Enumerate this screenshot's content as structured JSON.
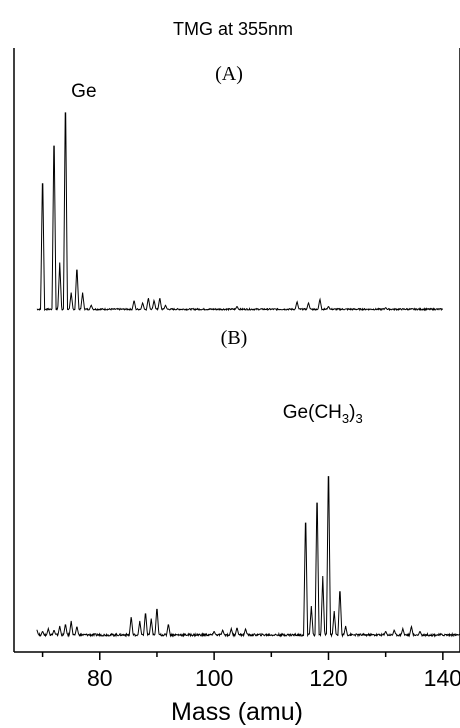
{
  "chart_data": {
    "type": "line",
    "title": "TMG at 355nm",
    "xlabel": "Mass (amu)",
    "ylabel": "",
    "xlim": [
      65,
      143
    ],
    "xticks": [
      80,
      100,
      120,
      140
    ],
    "ylim": [
      0,
      1
    ],
    "grid": false,
    "legend": "none",
    "panels": [
      {
        "label": "(A)",
        "annotation": "Ge",
        "annotation_x": 75,
        "x_end": 140,
        "baseline": 0.01,
        "peaks": [
          {
            "x": 70.0,
            "y": 0.57
          },
          {
            "x": 72.0,
            "y": 0.74
          },
          {
            "x": 73.0,
            "y": 0.19
          },
          {
            "x": 74.0,
            "y": 0.89
          },
          {
            "x": 75.0,
            "y": 0.07
          },
          {
            "x": 76.0,
            "y": 0.18
          },
          {
            "x": 77.0,
            "y": 0.07
          },
          {
            "x": 78.5,
            "y": 0.02
          },
          {
            "x": 86.0,
            "y": 0.04
          },
          {
            "x": 87.5,
            "y": 0.03
          },
          {
            "x": 88.5,
            "y": 0.05
          },
          {
            "x": 89.5,
            "y": 0.04
          },
          {
            "x": 90.5,
            "y": 0.05
          },
          {
            "x": 91.5,
            "y": 0.02
          },
          {
            "x": 104.0,
            "y": 0.015
          },
          {
            "x": 114.5,
            "y": 0.035
          },
          {
            "x": 116.5,
            "y": 0.03
          },
          {
            "x": 118.5,
            "y": 0.045
          },
          {
            "x": 120.0,
            "y": 0.015
          },
          {
            "x": 130.0,
            "y": 0.01
          }
        ]
      },
      {
        "label": "(B)",
        "annotation": "Ge(CH3)3",
        "annotation_x": 119,
        "x_end": 143,
        "baseline": 0.015,
        "peaks": [
          {
            "x": 68.0,
            "y": 0.01
          },
          {
            "x": 69.0,
            "y": 0.025
          },
          {
            "x": 70.0,
            "y": 0.02
          },
          {
            "x": 71.0,
            "y": 0.03
          },
          {
            "x": 72.0,
            "y": 0.025
          },
          {
            "x": 73.0,
            "y": 0.04
          },
          {
            "x": 74.0,
            "y": 0.05
          },
          {
            "x": 75.0,
            "y": 0.06
          },
          {
            "x": 76.0,
            "y": 0.04
          },
          {
            "x": 85.5,
            "y": 0.08
          },
          {
            "x": 87.0,
            "y": 0.06
          },
          {
            "x": 88.0,
            "y": 0.1
          },
          {
            "x": 89.0,
            "y": 0.07
          },
          {
            "x": 90.0,
            "y": 0.12
          },
          {
            "x": 92.0,
            "y": 0.05
          },
          {
            "x": 100.0,
            "y": 0.02
          },
          {
            "x": 101.5,
            "y": 0.025
          },
          {
            "x": 103.0,
            "y": 0.03
          },
          {
            "x": 104.0,
            "y": 0.035
          },
          {
            "x": 105.5,
            "y": 0.03
          },
          {
            "x": 116.0,
            "y": 0.51
          },
          {
            "x": 117.0,
            "y": 0.12
          },
          {
            "x": 118.0,
            "y": 0.6
          },
          {
            "x": 119.0,
            "y": 0.24
          },
          {
            "x": 120.0,
            "y": 0.72
          },
          {
            "x": 121.0,
            "y": 0.1
          },
          {
            "x": 122.0,
            "y": 0.2
          },
          {
            "x": 123.0,
            "y": 0.04
          },
          {
            "x": 130.0,
            "y": 0.02
          },
          {
            "x": 131.5,
            "y": 0.025
          },
          {
            "x": 133.0,
            "y": 0.03
          },
          {
            "x": 134.5,
            "y": 0.04
          },
          {
            "x": 136.0,
            "y": 0.02
          }
        ]
      }
    ]
  }
}
